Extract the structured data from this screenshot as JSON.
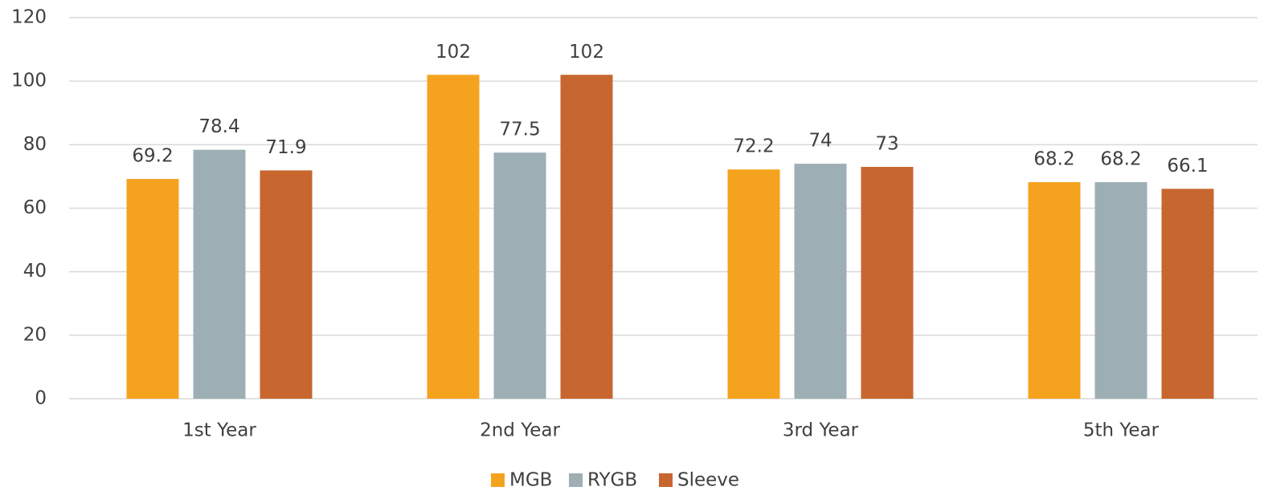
{
  "chart_data": {
    "type": "bar",
    "categories": [
      "1st Year",
      "2nd Year",
      "3rd Year",
      "5th Year"
    ],
    "series": [
      {
        "name": "MGB",
        "color": "#f5a31f",
        "values": [
          69.2,
          102,
          72.2,
          68.2
        ]
      },
      {
        "name": "RYGB",
        "color": "#9dafb5",
        "values": [
          78.4,
          77.5,
          74,
          68.2
        ]
      },
      {
        "name": "Sleeve",
        "color": "#c8662f",
        "values": [
          71.9,
          102,
          73,
          66.1
        ]
      }
    ],
    "ylim": [
      0,
      120
    ],
    "yticks": [
      0,
      20,
      40,
      60,
      80,
      100,
      120
    ],
    "grid": true,
    "legend": "bottom"
  }
}
